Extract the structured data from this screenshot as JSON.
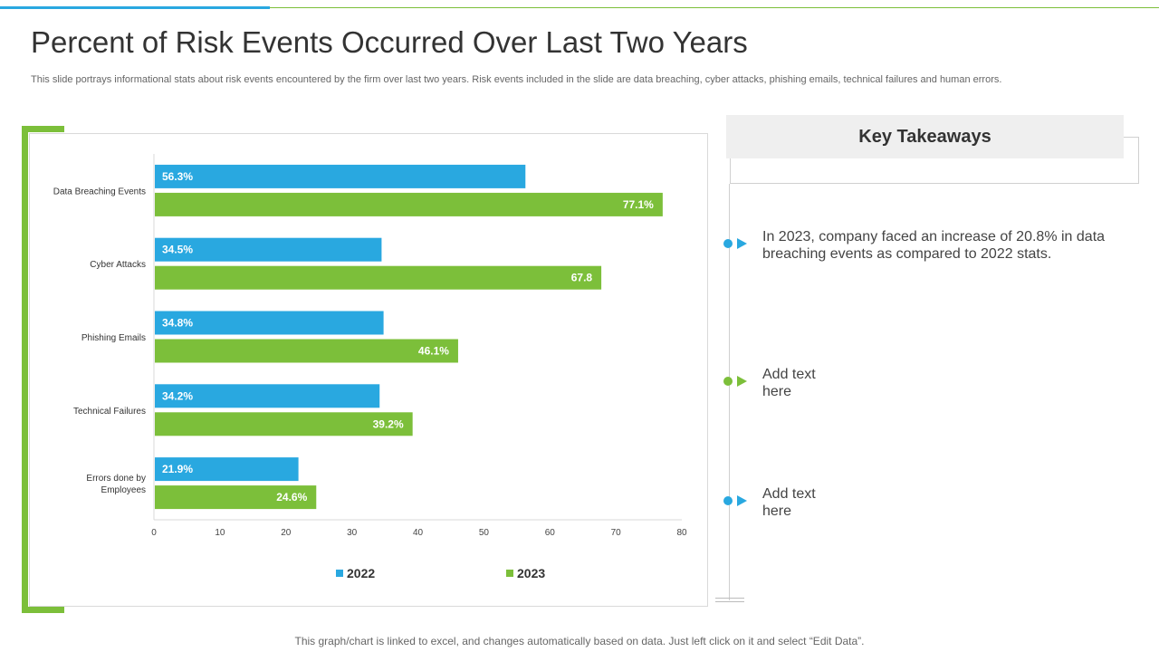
{
  "header": {
    "title": "Percent of Risk Events Occurred Over Last Two Years",
    "subtitle": "This slide portrays informational stats about risk events encountered by the firm over last two years. Risk events included in the slide are data breaching, cyber attacks, phishing emails, technical failures and human errors."
  },
  "chart_data": {
    "type": "bar",
    "orientation": "horizontal",
    "categories": [
      "Data Breaching Events",
      "Cyber Attacks",
      "Phishing Emails",
      "Technical Failures",
      "Errors done by Employees"
    ],
    "series": [
      {
        "name": "2022",
        "values": [
          56.3,
          34.5,
          34.8,
          34.2,
          21.9
        ],
        "labels": [
          "56.3%",
          "34.5%",
          "34.8%",
          "34.2%",
          "21.9%"
        ],
        "color": "#29a8e0"
      },
      {
        "name": "2023",
        "values": [
          77.1,
          67.8,
          46.1,
          39.2,
          24.6
        ],
        "labels": [
          "77.1%",
          "67.8",
          "46.1%",
          "39.2%",
          "24.6%"
        ],
        "color": "#7cbf3a"
      }
    ],
    "xlim": [
      0,
      80
    ],
    "xticks": [
      0,
      10,
      20,
      30,
      40,
      50,
      60,
      70,
      80
    ],
    "grid": false,
    "legend": "bottom"
  },
  "takeaways": {
    "heading": "Key Takeaways",
    "items": [
      {
        "text": "In 2023, company faced an increase of 20.8% in data breaching events  as compared to 2022 stats.",
        "color": "#29a8e0"
      },
      {
        "text": "Add text here",
        "color": "#7cbf3a"
      },
      {
        "text": "Add text here",
        "color": "#29a8e0"
      }
    ]
  },
  "footer": {
    "note": "This graph/chart is linked to excel,  and changes automatically based on data. Just left click on it and select “Edit Data”."
  }
}
